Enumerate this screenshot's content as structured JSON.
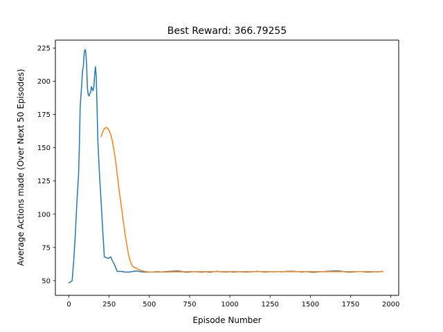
{
  "chart_data": {
    "type": "line",
    "title": "Best Reward:  366.79255",
    "xlabel": "Episode Number",
    "ylabel": "Average Actions made (Over Next 50 Episodes)",
    "xlim": [
      -84,
      2049
    ],
    "ylim": [
      39,
      231
    ],
    "x_ticks": [
      0,
      250,
      500,
      750,
      1000,
      1250,
      1500,
      1750,
      2000
    ],
    "y_ticks": [
      50,
      75,
      100,
      125,
      150,
      175,
      200,
      225
    ],
    "x_tick_labels": [
      "0",
      "250",
      "500",
      "750",
      "1000",
      "1250",
      "1500",
      "1750",
      "2000"
    ],
    "y_tick_labels": [
      "50",
      "75",
      "100",
      "125",
      "150",
      "175",
      "200",
      "225"
    ],
    "grid": false,
    "legend": "none",
    "series": [
      {
        "color": "#1f77b4",
        "points": [
          [
            0,
            48.5
          ],
          [
            10,
            49
          ],
          [
            20,
            50
          ],
          [
            30,
            65
          ],
          [
            40,
            85
          ],
          [
            50,
            110
          ],
          [
            60,
            130
          ],
          [
            65,
            150
          ],
          [
            70,
            180
          ],
          [
            75,
            190
          ],
          [
            80,
            198
          ],
          [
            85,
            208
          ],
          [
            90,
            212
          ],
          [
            95,
            221
          ],
          [
            100,
            224
          ],
          [
            105,
            222
          ],
          [
            110,
            213
          ],
          [
            115,
            195
          ],
          [
            120,
            190
          ],
          [
            125,
            189
          ],
          [
            130,
            191
          ],
          [
            135,
            192
          ],
          [
            140,
            196
          ],
          [
            145,
            194
          ],
          [
            150,
            193
          ],
          [
            155,
            196
          ],
          [
            160,
            205
          ],
          [
            165,
            211
          ],
          [
            170,
            203
          ],
          [
            175,
            180
          ],
          [
            180,
            155
          ],
          [
            190,
            130
          ],
          [
            200,
            110
          ],
          [
            210,
            88
          ],
          [
            220,
            68
          ],
          [
            230,
            67.5
          ],
          [
            240,
            67
          ],
          [
            250,
            67
          ],
          [
            260,
            68
          ],
          [
            270,
            65
          ],
          [
            280,
            63
          ],
          [
            290,
            60
          ],
          [
            300,
            57
          ],
          [
            325,
            57
          ],
          [
            350,
            56.5
          ],
          [
            375,
            56.5
          ],
          [
            400,
            57
          ],
          [
            425,
            57.3
          ],
          [
            450,
            56.7
          ],
          [
            475,
            56.5
          ],
          [
            500,
            56.5
          ],
          [
            525,
            56.6
          ],
          [
            550,
            56.8
          ],
          [
            575,
            56.6
          ],
          [
            600,
            56.8
          ],
          [
            625,
            57
          ],
          [
            650,
            57.2
          ],
          [
            675,
            57.3
          ],
          [
            700,
            57
          ],
          [
            725,
            56.4
          ],
          [
            750,
            56.6
          ],
          [
            775,
            56.8
          ],
          [
            800,
            56.7
          ],
          [
            825,
            56.5
          ],
          [
            850,
            56.8
          ],
          [
            875,
            56.4
          ],
          [
            900,
            56.8
          ],
          [
            925,
            57
          ],
          [
            950,
            56.7
          ],
          [
            975,
            56.6
          ],
          [
            1000,
            56.8
          ],
          [
            1025,
            56.5
          ],
          [
            1050,
            56.8
          ],
          [
            1075,
            56.7
          ],
          [
            1100,
            56.6
          ],
          [
            1125,
            56.7
          ],
          [
            1150,
            56.8
          ],
          [
            1175,
            57
          ],
          [
            1200,
            56.7
          ],
          [
            1225,
            56.6
          ],
          [
            1250,
            56.8
          ],
          [
            1275,
            56.7
          ],
          [
            1300,
            56.9
          ],
          [
            1325,
            56.7
          ],
          [
            1350,
            57
          ],
          [
            1375,
            57.1
          ],
          [
            1400,
            57
          ],
          [
            1425,
            56.8
          ],
          [
            1450,
            56.6
          ],
          [
            1475,
            56.9
          ],
          [
            1500,
            56.5
          ],
          [
            1525,
            56.4
          ],
          [
            1550,
            56.7
          ],
          [
            1575,
            56.8
          ],
          [
            1600,
            57
          ],
          [
            1625,
            57.2
          ],
          [
            1650,
            57.3
          ],
          [
            1675,
            57.3
          ],
          [
            1700,
            57
          ],
          [
            1725,
            56.6
          ],
          [
            1750,
            56.5
          ],
          [
            1775,
            56.7
          ],
          [
            1800,
            56.9
          ],
          [
            1825,
            56.8
          ],
          [
            1850,
            56.5
          ],
          [
            1875,
            56.6
          ],
          [
            1900,
            56.8
          ],
          [
            1925,
            56.7
          ],
          [
            1950,
            57
          ]
        ]
      },
      {
        "color": "#ff7f0e",
        "points": [
          [
            200,
            158.5
          ],
          [
            210,
            162
          ],
          [
            220,
            164.5
          ],
          [
            230,
            165.2
          ],
          [
            240,
            164.8
          ],
          [
            250,
            163
          ],
          [
            260,
            160
          ],
          [
            270,
            155
          ],
          [
            280,
            148
          ],
          [
            290,
            140
          ],
          [
            300,
            130
          ],
          [
            310,
            120
          ],
          [
            320,
            111
          ],
          [
            330,
            102
          ],
          [
            340,
            93
          ],
          [
            350,
            84
          ],
          [
            360,
            77
          ],
          [
            370,
            70
          ],
          [
            380,
            65
          ],
          [
            390,
            62
          ],
          [
            400,
            60.5
          ],
          [
            420,
            59.2
          ],
          [
            440,
            58
          ],
          [
            460,
            57.3
          ],
          [
            480,
            56.8
          ],
          [
            500,
            56.6
          ],
          [
            550,
            56.5
          ],
          [
            600,
            56.6
          ],
          [
            650,
            56.7
          ],
          [
            700,
            56.7
          ],
          [
            750,
            56.8
          ],
          [
            800,
            56.8
          ],
          [
            850,
            56.8
          ],
          [
            900,
            56.8
          ],
          [
            950,
            56.8
          ],
          [
            1000,
            56.8
          ],
          [
            1100,
            56.8
          ],
          [
            1200,
            56.8
          ],
          [
            1300,
            56.8
          ],
          [
            1400,
            56.8
          ],
          [
            1500,
            56.8
          ],
          [
            1600,
            56.8
          ],
          [
            1700,
            56.8
          ],
          [
            1800,
            56.8
          ],
          [
            1900,
            56.8
          ],
          [
            1950,
            56.8
          ]
        ]
      }
    ]
  }
}
